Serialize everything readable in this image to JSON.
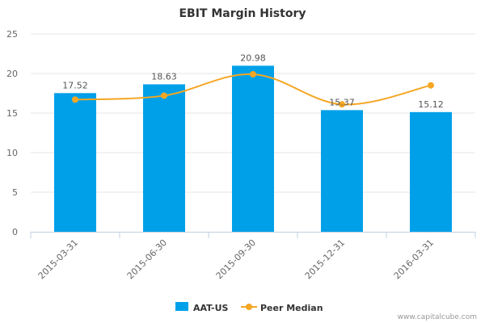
{
  "chart_data": {
    "type": "bar",
    "title": "EBIT Margin History",
    "categories": [
      "2015-03-31",
      "2015-06-30",
      "2015-09-30",
      "2015-12-31",
      "2016-03-31"
    ],
    "series": [
      {
        "name": "AAT-US",
        "type": "bar",
        "color": "#00a0e9",
        "values": [
          17.52,
          18.63,
          20.98,
          15.37,
          15.12
        ],
        "labels": [
          "17.52",
          "18.63",
          "20.98",
          "15.37",
          "15.12"
        ]
      },
      {
        "name": "Peer Median",
        "type": "line",
        "smooth": true,
        "color": "#f5a623",
        "values": [
          16.7,
          17.2,
          19.9,
          16.1,
          18.5
        ]
      }
    ],
    "yticks": [
      "0",
      "5",
      "10",
      "15",
      "20",
      "25"
    ],
    "ylim": [
      0,
      25
    ],
    "legend_position": "bottom",
    "grid": "horizontal"
  },
  "credit": "www.capitalcube.com"
}
